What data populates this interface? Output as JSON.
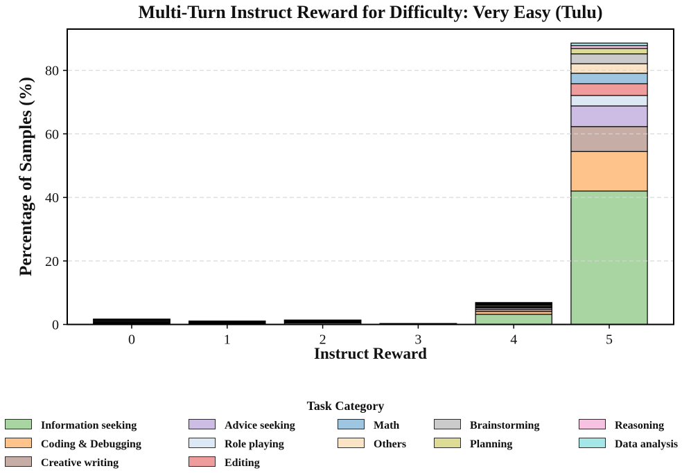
{
  "chart_data": {
    "type": "bar",
    "stacked": true,
    "title": "Multi-Turn Instruct Reward for Difficulty: Very Easy (Tulu)",
    "xlabel": "Instruct Reward",
    "ylabel": "Percentage of Samples (%)",
    "legend_title": "Task Category",
    "categories": [
      "0",
      "1",
      "2",
      "3",
      "4",
      "5"
    ],
    "ylim": [
      0,
      93
    ],
    "yticks": [
      0,
      20,
      40,
      60,
      80
    ],
    "grid": "horizontal dashed gridlines at yticks, drawn over bars",
    "legend_position": "below plot, 5 columns, column-major",
    "bar_edge_color": "#000000",
    "series": [
      {
        "name": "Information seeking",
        "color": "#a8d5a2",
        "values": [
          0.35,
          0.35,
          0.45,
          0.1,
          3.2,
          42.0
        ]
      },
      {
        "name": "Coding & Debugging",
        "color": "#fdc38b",
        "values": [
          0.1,
          0.1,
          0.15,
          0.04,
          0.9,
          12.5
        ]
      },
      {
        "name": "Creative writing",
        "color": "#c6aea6",
        "values": [
          0.1,
          0.05,
          0.1,
          0.03,
          0.6,
          7.8
        ]
      },
      {
        "name": "Advice seeking",
        "color": "#cdbce4",
        "values": [
          0.1,
          0.05,
          0.1,
          0.03,
          0.5,
          6.5
        ]
      },
      {
        "name": "Role playing",
        "color": "#dce8f4",
        "values": [
          0.3,
          0.1,
          0.1,
          0.02,
          0.3,
          3.3
        ]
      },
      {
        "name": "Editing",
        "color": "#ef9c9c",
        "values": [
          0.1,
          0.05,
          0.1,
          0.02,
          0.3,
          3.7
        ]
      },
      {
        "name": "Math",
        "color": "#9ec6e0",
        "values": [
          0.1,
          0.1,
          0.1,
          0.02,
          0.35,
          3.3
        ]
      },
      {
        "name": "Others",
        "color": "#fbe3c5",
        "values": [
          0.05,
          0.05,
          0.05,
          0.01,
          0.25,
          3.0
        ]
      },
      {
        "name": "Brainstorming",
        "color": "#cbcbcb",
        "values": [
          0.3,
          0.1,
          0.15,
          0.01,
          0.25,
          3.1
        ]
      },
      {
        "name": "Planning",
        "color": "#dcdc96",
        "values": [
          0.1,
          0.05,
          0.05,
          0.01,
          0.1,
          1.7
        ]
      },
      {
        "name": "Reasoning",
        "color": "#f5c2e2",
        "values": [
          0.05,
          0.05,
          0.03,
          0.005,
          0.1,
          0.9
        ]
      },
      {
        "name": "Data analysis",
        "color": "#a5e6e6",
        "values": [
          0.05,
          0.05,
          0.02,
          0.005,
          0.05,
          0.8
        ]
      }
    ],
    "legend_columns": [
      [
        0,
        1,
        2
      ],
      [
        3,
        4,
        5
      ],
      [
        6,
        7
      ],
      [
        8,
        9
      ],
      [
        10,
        11
      ]
    ]
  }
}
